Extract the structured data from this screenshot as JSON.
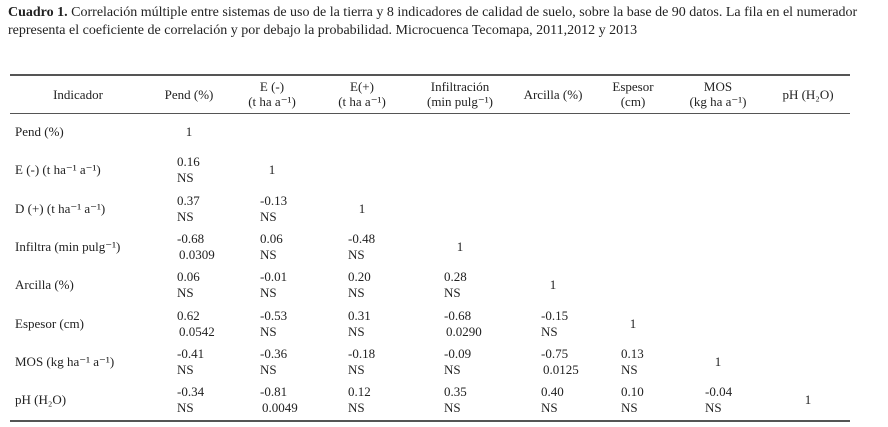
{
  "caption": {
    "label": "Cuadro 1.",
    "text": "Correlación múltiple entre sistemas de uso de la tierra y 8 indicadores de calidad de suelo, sobre la base de 90 datos. La fila en el numerador representa el coeficiente de correlación y por debajo la probabilidad. Microcuenca Tecomapa, 2011,2012 y 2013"
  },
  "table": {
    "columns": [
      [
        "Indicador"
      ],
      [
        "Pend (%)"
      ],
      [
        "E (-)",
        "(t ha a⁻¹)"
      ],
      [
        "E(+)",
        "(t ha a⁻¹)"
      ],
      [
        "Infiltración",
        "(min pulg⁻¹)"
      ],
      [
        "Arcilla (%)"
      ],
      [
        "Espesor",
        "(cm)"
      ],
      [
        "MOS",
        "(kg ha a⁻¹)"
      ],
      [
        "pH (H₂O)"
      ]
    ],
    "rows": [
      {
        "label": "Pend (%)",
        "cells": [
          [
            "1"
          ]
        ]
      },
      {
        "label": "E (-) (t ha⁻¹ a⁻¹)",
        "cells": [
          [
            "0.16",
            "NS"
          ],
          [
            "1"
          ]
        ]
      },
      {
        "label": "D (+) (t ha⁻¹ a⁻¹)",
        "cells": [
          [
            "0.37",
            "NS"
          ],
          [
            "-0.13",
            "NS"
          ],
          [
            "1"
          ]
        ]
      },
      {
        "label": "Infiltra (min pulg⁻¹)",
        "cells": [
          [
            "-0.68",
            "0.0309"
          ],
          [
            "0.06",
            "NS"
          ],
          [
            "-0.48",
            "NS"
          ],
          [
            "1"
          ]
        ]
      },
      {
        "label": "Arcilla (%)",
        "cells": [
          [
            "0.06",
            "NS"
          ],
          [
            "-0.01",
            "NS"
          ],
          [
            "0.20",
            "NS"
          ],
          [
            "0.28",
            "NS"
          ],
          [
            "1"
          ]
        ]
      },
      {
        "label": "Espesor (cm)",
        "cells": [
          [
            "0.62",
            "0.0542"
          ],
          [
            "-0.53",
            "NS"
          ],
          [
            "0.31",
            "NS"
          ],
          [
            "-0.68",
            "0.0290"
          ],
          [
            "-0.15",
            "NS"
          ],
          [
            "1"
          ]
        ]
      },
      {
        "label": "MOS (kg ha⁻¹ a⁻¹)",
        "cells": [
          [
            "-0.41",
            "NS"
          ],
          [
            "-0.36",
            "NS"
          ],
          [
            "-0.18",
            "NS"
          ],
          [
            "-0.09",
            "NS"
          ],
          [
            "-0.75",
            "0.0125"
          ],
          [
            "0.13",
            "NS"
          ],
          [
            "1"
          ]
        ]
      },
      {
        "label": "pH (H₂O)",
        "cells": [
          [
            "-0.34",
            "NS"
          ],
          [
            "-0.81",
            "0.0049"
          ],
          [
            "0.12",
            "NS"
          ],
          [
            "0.35",
            "NS"
          ],
          [
            "0.40",
            "NS"
          ],
          [
            "0.10",
            "NS"
          ],
          [
            "-0.04",
            "NS"
          ],
          [
            "1"
          ]
        ]
      }
    ]
  }
}
